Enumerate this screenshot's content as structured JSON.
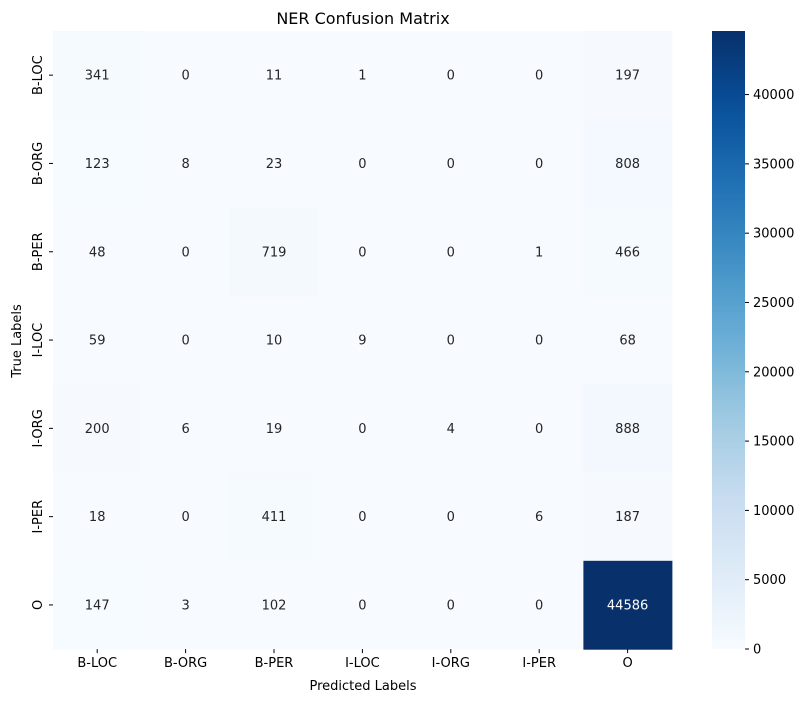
{
  "chart_data": {
    "type": "heatmap",
    "title": "NER Confusion Matrix",
    "xlabel": "Predicted Labels",
    "ylabel": "True Labels",
    "x_categories": [
      "B-LOC",
      "B-ORG",
      "B-PER",
      "I-LOC",
      "I-ORG",
      "I-PER",
      "O"
    ],
    "y_categories": [
      "B-LOC",
      "B-ORG",
      "B-PER",
      "I-LOC",
      "I-ORG",
      "I-PER",
      "O"
    ],
    "values": [
      [
        341,
        0,
        11,
        1,
        0,
        0,
        197
      ],
      [
        123,
        8,
        23,
        0,
        0,
        0,
        808
      ],
      [
        48,
        0,
        719,
        0,
        0,
        1,
        466
      ],
      [
        59,
        0,
        10,
        9,
        0,
        0,
        68
      ],
      [
        200,
        6,
        19,
        0,
        4,
        0,
        888
      ],
      [
        18,
        0,
        411,
        0,
        0,
        6,
        187
      ],
      [
        147,
        3,
        102,
        0,
        0,
        0,
        44586
      ]
    ],
    "colormap": "Blues",
    "colorbar": {
      "min": 0,
      "max": 44586,
      "ticks": [
        0,
        5000,
        10000,
        15000,
        20000,
        25000,
        30000,
        35000,
        40000
      ]
    },
    "grid": false,
    "legend": "none"
  }
}
